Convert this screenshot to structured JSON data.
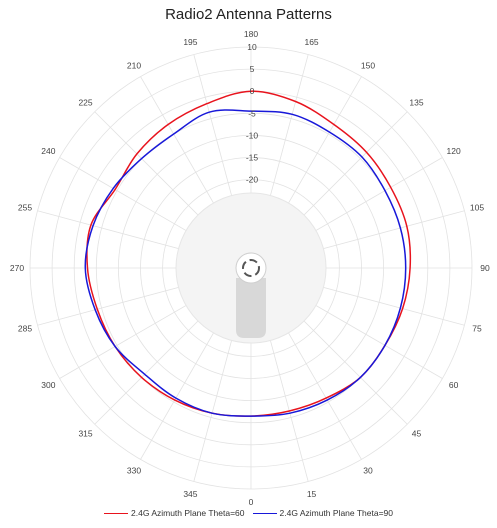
{
  "chart_data": {
    "type": "polar-line",
    "title": "Radio2 Antenna Patterns",
    "angle_ticks": [
      0,
      15,
      30,
      45,
      60,
      75,
      90,
      105,
      120,
      135,
      150,
      165,
      180,
      195,
      210,
      225,
      240,
      255,
      270,
      285,
      300,
      315,
      330,
      345
    ],
    "radial_ticks": [
      10,
      5,
      0,
      -5,
      -10,
      -15,
      -20
    ],
    "radial_range": [
      -40,
      10
    ],
    "grid": true,
    "legend": "bottom",
    "series": [
      {
        "name": "2.4G Azimuth Plane Theta=60",
        "color": "#e8131d",
        "angles": [
          0,
          15,
          30,
          45,
          60,
          75,
          90,
          105,
          120,
          135,
          150,
          165,
          180,
          195,
          210,
          225,
          240,
          255,
          270,
          285,
          300,
          315,
          330,
          345
        ],
        "values": [
          -6.5,
          -6.5,
          -6,
          -5,
          -5,
          -4.5,
          -4,
          -3.5,
          -3.5,
          -3,
          -2.5,
          -1,
          0,
          -1.5,
          -2.5,
          -3.5,
          -4.5,
          -2.5,
          -3,
          -4,
          -4.5,
          -5,
          -5.5,
          -6
        ]
      },
      {
        "name": "2.4G Azimuth Plane Theta=90",
        "color": "#1818d9",
        "angles": [
          0,
          15,
          30,
          45,
          60,
          75,
          90,
          105,
          120,
          135,
          150,
          165,
          180,
          195,
          210,
          225,
          240,
          255,
          270,
          285,
          300,
          315,
          330,
          345
        ],
        "values": [
          -6.5,
          -6,
          -5.5,
          -5,
          -5,
          -5,
          -5,
          -5,
          -5,
          -4.5,
          -4.5,
          -4,
          -4.5,
          -3.5,
          -5,
          -5,
          -4,
          -3,
          -2.5,
          -3.5,
          -4.5,
          -6,
          -6,
          -6
        ]
      }
    ]
  }
}
